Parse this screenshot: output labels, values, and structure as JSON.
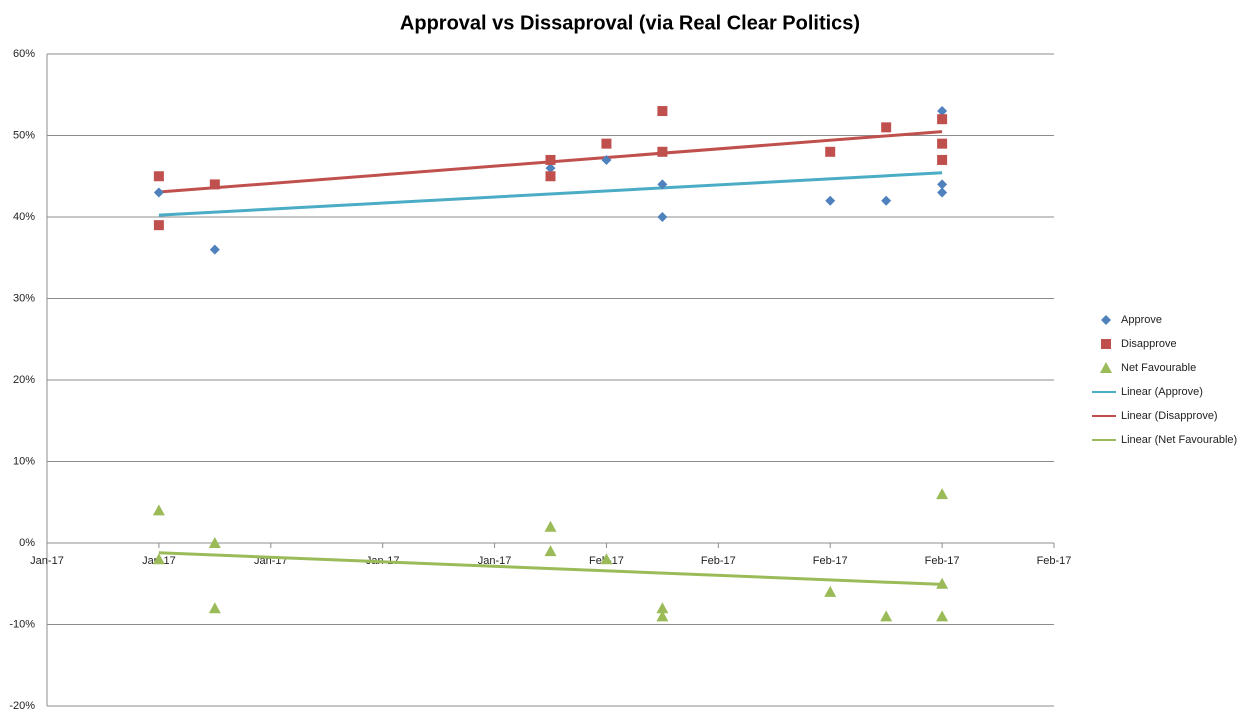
{
  "chart_data": {
    "type": "scatter",
    "title": "Approval vs Dissaproval (via Real Clear Politics)",
    "xlim": [
      42749,
      42785
    ],
    "xticks": [
      {
        "value": 42749,
        "label": "Jan-17"
      },
      {
        "value": 42753,
        "label": "Jan-17"
      },
      {
        "value": 42757,
        "label": "Jan-17"
      },
      {
        "value": 42761,
        "label": "Jan-17"
      },
      {
        "value": 42765,
        "label": "Jan-17"
      },
      {
        "value": 42769,
        "label": "Feb-17"
      },
      {
        "value": 42773,
        "label": "Feb-17"
      },
      {
        "value": 42777,
        "label": "Feb-17"
      },
      {
        "value": 42781,
        "label": "Feb-17"
      },
      {
        "value": 42785,
        "label": "Feb-17"
      }
    ],
    "ylim": [
      -20,
      60
    ],
    "yticks": [
      {
        "value": -20,
        "label": "-20%"
      },
      {
        "value": -10,
        "label": "-10%"
      },
      {
        "value": 0,
        "label": "0%"
      },
      {
        "value": 10,
        "label": "10%"
      },
      {
        "value": 20,
        "label": "20%"
      },
      {
        "value": 30,
        "label": "30%"
      },
      {
        "value": 40,
        "label": "40%"
      },
      {
        "value": 50,
        "label": "50%"
      },
      {
        "value": 60,
        "label": "60%"
      }
    ],
    "grid": true,
    "legend": "right",
    "series": [
      {
        "name": "Approve",
        "color": "#4f81bd",
        "marker": "diamond",
        "trendline": "Linear (Approve)",
        "trend_color": "#4bacc6",
        "x": [
          42753,
          42755,
          42767,
          42769,
          42771,
          42771,
          42777,
          42779,
          42781,
          42781,
          42781
        ],
        "values": [
          43,
          36,
          46,
          47,
          44,
          40,
          42,
          42,
          53,
          44,
          43
        ]
      },
      {
        "name": "Disapprove",
        "color": "#c0504d",
        "marker": "square",
        "trendline": "Linear (Disapprove)",
        "trend_color": "#c0504d",
        "x": [
          42753,
          42753,
          42755,
          42767,
          42767,
          42769,
          42771,
          42771,
          42777,
          42779,
          42781,
          42781,
          42781
        ],
        "values": [
          45,
          39,
          44,
          47,
          45,
          49,
          53,
          48,
          48,
          51,
          52,
          49,
          47
        ]
      },
      {
        "name": "Net Favourable",
        "color": "#9bbb59",
        "marker": "triangle",
        "trendline": "Linear (Net Favourable)",
        "trend_color": "#9bbb59",
        "x": [
          42753,
          42753,
          42755,
          42755,
          42767,
          42767,
          42769,
          42771,
          42771,
          42777,
          42779,
          42781,
          42781,
          42781
        ],
        "values": [
          4,
          -2,
          0,
          -8,
          2,
          -1,
          -2,
          -8,
          -9,
          -6,
          -9,
          6,
          -5,
          -9
        ]
      }
    ]
  }
}
